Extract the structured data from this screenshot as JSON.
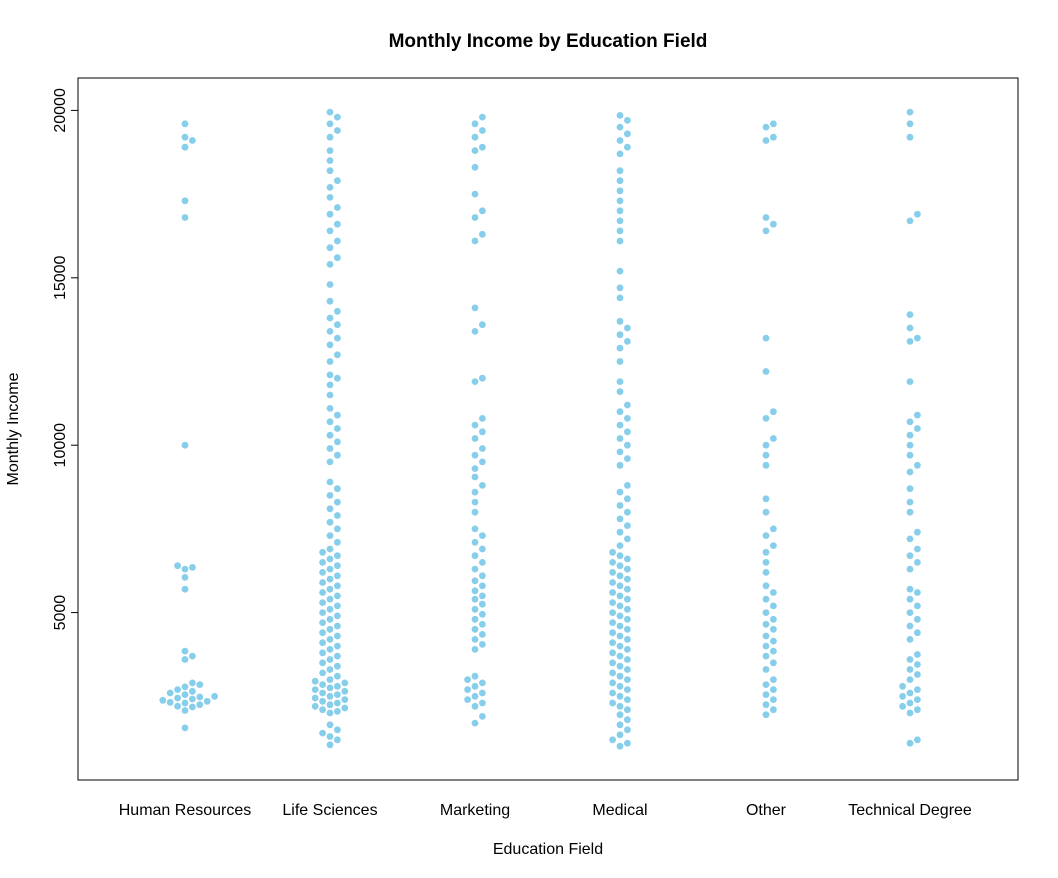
{
  "chart_data": {
    "type": "scatter",
    "subtype": "beeswarm",
    "title": "Monthly Income by Education Field",
    "xlabel": "Education Field",
    "ylabel": "Monthly Income",
    "categories": [
      "Human Resources",
      "Life Sciences",
      "Marketing",
      "Medical",
      "Other",
      "Technical Degree"
    ],
    "ylim": [
      0,
      20000
    ],
    "yticks": [
      5000,
      10000,
      15000,
      20000
    ],
    "point_color": "#87CEEB",
    "grid": false,
    "series": [
      {
        "category": "Human Resources",
        "values": [
          1555,
          2076,
          2180,
          2205,
          2250,
          2300,
          2320,
          2350,
          2380,
          2420,
          2450,
          2480,
          2500,
          2550,
          2600,
          2650,
          2700,
          2780,
          2850,
          2900,
          3600,
          3700,
          3850,
          5700,
          6050,
          6300,
          6350,
          6400,
          10000,
          16800,
          17300,
          18900,
          19100,
          19200,
          19600
        ]
      },
      {
        "category": "Life Sciences",
        "values": [
          1051,
          1200,
          1300,
          1400,
          1500,
          1650,
          2000,
          2050,
          2100,
          2150,
          2200,
          2250,
          2300,
          2350,
          2400,
          2450,
          2500,
          2550,
          2600,
          2650,
          2700,
          2750,
          2800,
          2850,
          2900,
          2950,
          3000,
          3100,
          3200,
          3300,
          3400,
          3500,
          3600,
          3700,
          3800,
          3900,
          4000,
          4100,
          4200,
          4300,
          4400,
          4500,
          4600,
          4700,
          4800,
          4900,
          5000,
          5100,
          5200,
          5300,
          5400,
          5500,
          5600,
          5700,
          5800,
          5900,
          6000,
          6100,
          6200,
          6300,
          6400,
          6500,
          6600,
          6700,
          6800,
          6900,
          7100,
          7300,
          7500,
          7700,
          7900,
          8100,
          8300,
          8500,
          8700,
          8900,
          9500,
          9700,
          9900,
          10100,
          10300,
          10500,
          10700,
          10900,
          11100,
          11500,
          11800,
          12000,
          12100,
          12500,
          12700,
          13000,
          13200,
          13400,
          13600,
          13800,
          14000,
          14300,
          14800,
          15400,
          15600,
          15900,
          16100,
          16400,
          16600,
          16900,
          17100,
          17400,
          17700,
          17900,
          18200,
          18500,
          18800,
          19200,
          19400,
          19600,
          19800,
          19950
        ]
      },
      {
        "category": "Marketing",
        "values": [
          1700,
          1900,
          2200,
          2300,
          2400,
          2500,
          2600,
          2700,
          2800,
          2900,
          3000,
          3100,
          3900,
          4050,
          4200,
          4350,
          4500,
          4650,
          4800,
          4950,
          5100,
          5250,
          5400,
          5500,
          5650,
          5800,
          5950,
          6100,
          6300,
          6500,
          6700,
          6900,
          7100,
          7300,
          7500,
          8000,
          8300,
          8600,
          8800,
          9050,
          9300,
          9500,
          9700,
          9900,
          10200,
          10400,
          10600,
          10800,
          11900,
          12000,
          13400,
          13600,
          14100,
          16100,
          16300,
          16800,
          17000,
          17500,
          18300,
          18800,
          18900,
          19200,
          19400,
          19600,
          19800
        ]
      },
      {
        "category": "Medical",
        "values": [
          1009,
          1100,
          1200,
          1350,
          1500,
          1650,
          1800,
          1950,
          2100,
          2200,
          2300,
          2400,
          2500,
          2600,
          2700,
          2800,
          2900,
          3000,
          3100,
          3200,
          3300,
          3400,
          3500,
          3600,
          3700,
          3800,
          3900,
          4000,
          4100,
          4200,
          4300,
          4400,
          4500,
          4600,
          4700,
          4800,
          4900,
          5000,
          5100,
          5200,
          5300,
          5400,
          5500,
          5600,
          5700,
          5800,
          5900,
          6000,
          6100,
          6200,
          6300,
          6400,
          6500,
          6600,
          6700,
          6800,
          7000,
          7200,
          7400,
          7600,
          7800,
          8000,
          8200,
          8400,
          8600,
          8800,
          9400,
          9600,
          9800,
          10000,
          10200,
          10400,
          10600,
          10800,
          11000,
          11200,
          11600,
          11900,
          12500,
          12900,
          13100,
          13300,
          13500,
          13700,
          14400,
          14700,
          15200,
          16100,
          16400,
          16700,
          17000,
          17300,
          17600,
          17900,
          18200,
          18700,
          18900,
          19100,
          19300,
          19500,
          19700,
          19850
        ]
      },
      {
        "category": "Other",
        "values": [
          1950,
          2100,
          2250,
          2400,
          2550,
          2700,
          2850,
          3000,
          3300,
          3500,
          3700,
          3850,
          4000,
          4150,
          4300,
          4500,
          4650,
          4800,
          5000,
          5200,
          5400,
          5600,
          5800,
          6200,
          6500,
          6800,
          7000,
          7300,
          7500,
          8000,
          8400,
          9400,
          9700,
          10000,
          10200,
          10800,
          11000,
          12200,
          13200,
          16400,
          16600,
          16800,
          19100,
          19200,
          19500,
          19600
        ]
      },
      {
        "category": "Technical Degree",
        "values": [
          1100,
          1200,
          2000,
          2100,
          2200,
          2300,
          2400,
          2500,
          2600,
          2700,
          2800,
          3000,
          3150,
          3300,
          3450,
          3600,
          3750,
          4200,
          4400,
          4600,
          4800,
          5000,
          5200,
          5400,
          5600,
          5700,
          6300,
          6500,
          6700,
          6900,
          7200,
          7400,
          8000,
          8300,
          8700,
          9200,
          9400,
          9700,
          10000,
          10300,
          10500,
          10700,
          10900,
          11900,
          13100,
          13200,
          13500,
          13900,
          16700,
          16900,
          19200,
          19600,
          19950
        ]
      }
    ]
  }
}
